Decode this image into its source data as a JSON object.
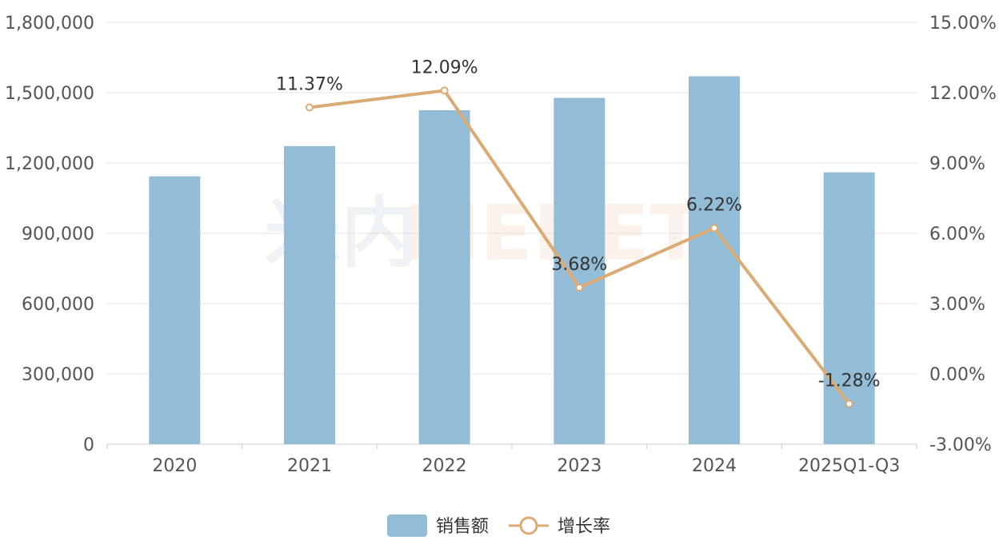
{
  "watermark": {
    "part1": "米内",
    "part2": "MENET"
  },
  "chart_data": {
    "type": "bar+line",
    "categories": [
      "2020",
      "2021",
      "2022",
      "2023",
      "2024",
      "2025Q1-Q3"
    ],
    "series": [
      {
        "name": "销售额",
        "type": "bar",
        "axis": "left",
        "values": [
          1143000,
          1272000,
          1425000,
          1478000,
          1570000,
          1160000
        ],
        "color": "#93bdd6"
      },
      {
        "name": "增长率",
        "type": "line",
        "axis": "right",
        "values": [
          null,
          11.37,
          12.09,
          3.68,
          6.22,
          -1.28
        ],
        "labels": [
          null,
          "11.37%",
          "12.09%",
          "3.68%",
          "6.22%",
          "-1.28%"
        ],
        "color": "#dcab74"
      }
    ],
    "left_axis": {
      "min": 0,
      "max": 1800000,
      "ticks": [
        "0",
        "300,000",
        "600,000",
        "900,000",
        "1,200,000",
        "1,500,000",
        "1,800,000"
      ]
    },
    "right_axis": {
      "min": -3,
      "max": 15,
      "ticks": [
        "-3.00%",
        "0.00%",
        "3.00%",
        "6.00%",
        "9.00%",
        "12.00%",
        "15.00%"
      ]
    },
    "grid": true,
    "legend_position": "bottom-center"
  }
}
